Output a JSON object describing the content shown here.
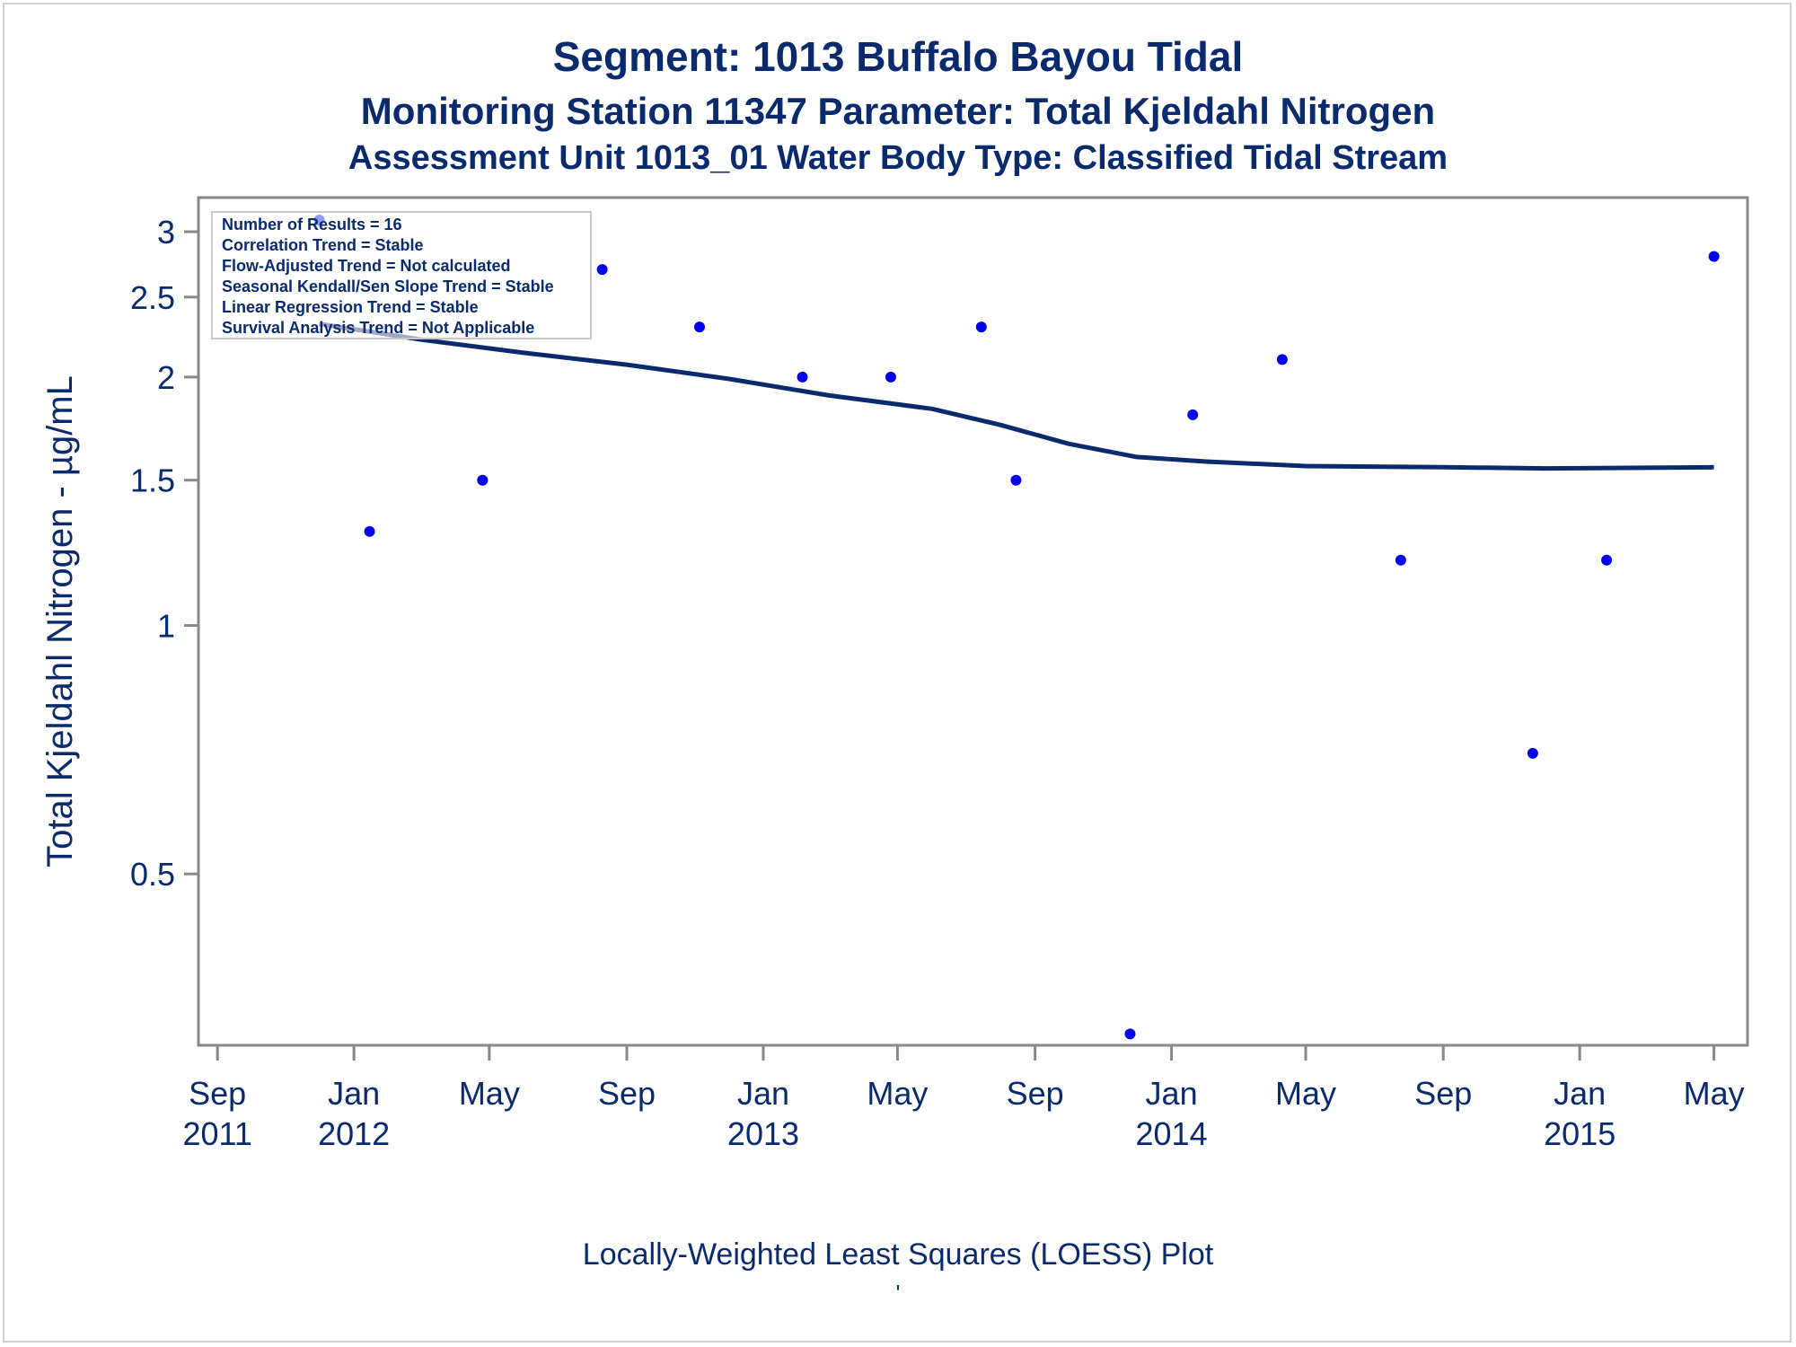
{
  "titles": {
    "line1": "Segment: 1013  Buffalo Bayou Tidal",
    "line2": "Monitoring Station 11347 Parameter: Total Kjeldahl Nitrogen",
    "line3": "Assessment Unit 1013_01   Water Body Type: Classified Tidal Stream"
  },
  "footnote": "Locally-Weighted Least Squares (LOESS) Plot",
  "footmark": "'",
  "colors": {
    "points": "#0000ee",
    "loess": "#0a2a6e",
    "text": "#0a2a6e",
    "frame": "#888888"
  },
  "chart_data": {
    "type": "scatter",
    "ylabel": "Total Kjeldahl Nitrogen -  µg/mL",
    "xlabel": "",
    "y_scale": "log",
    "xlim": [
      "2011-08-15",
      "2015-05-31"
    ],
    "ylim": [
      0.31,
      3.3
    ],
    "y_ticks": [
      3,
      2.5,
      2,
      1.5,
      1,
      0.5
    ],
    "y_tick_labels": [
      "3",
      "2.5",
      "2",
      "1.5",
      "1",
      "0.5"
    ],
    "x_ticks": [
      {
        "date": "2011-09-01",
        "line1": "Sep",
        "line2": "2011"
      },
      {
        "date": "2012-01-01",
        "line1": "Jan",
        "line2": "2012"
      },
      {
        "date": "2012-05-01",
        "line1": "May",
        "line2": ""
      },
      {
        "date": "2012-09-01",
        "line1": "Sep",
        "line2": ""
      },
      {
        "date": "2013-01-01",
        "line1": "Jan",
        "line2": "2013"
      },
      {
        "date": "2013-05-01",
        "line1": "May",
        "line2": ""
      },
      {
        "date": "2013-09-01",
        "line1": "Sep",
        "line2": ""
      },
      {
        "date": "2014-01-01",
        "line1": "Jan",
        "line2": "2014"
      },
      {
        "date": "2014-05-01",
        "line1": "May",
        "line2": ""
      },
      {
        "date": "2014-09-01",
        "line1": "Sep",
        "line2": ""
      },
      {
        "date": "2015-01-01",
        "line1": "Jan",
        "line2": "2015"
      },
      {
        "date": "2015-05-01",
        "line1": "May",
        "line2": ""
      }
    ],
    "points": [
      {
        "x": "2011-12-01",
        "y": 3.1
      },
      {
        "x": "2012-01-15",
        "y": 1.3
      },
      {
        "x": "2012-04-25",
        "y": 1.5
      },
      {
        "x": "2012-08-10",
        "y": 2.7
      },
      {
        "x": "2012-11-05",
        "y": 2.3
      },
      {
        "x": "2013-02-05",
        "y": 2.0
      },
      {
        "x": "2013-04-25",
        "y": 2.0
      },
      {
        "x": "2013-07-15",
        "y": 2.3
      },
      {
        "x": "2013-08-15",
        "y": 1.5
      },
      {
        "x": "2013-11-25",
        "y": 0.32
      },
      {
        "x": "2014-01-20",
        "y": 1.8
      },
      {
        "x": "2014-04-10",
        "y": 2.1
      },
      {
        "x": "2014-07-25",
        "y": 1.2
      },
      {
        "x": "2014-11-20",
        "y": 0.7
      },
      {
        "x": "2015-01-25",
        "y": 1.2
      },
      {
        "x": "2015-05-01",
        "y": 2.8
      }
    ],
    "loess": [
      {
        "x": "2011-12-01",
        "y": 2.32
      },
      {
        "x": "2012-03-01",
        "y": 2.22
      },
      {
        "x": "2012-06-01",
        "y": 2.14
      },
      {
        "x": "2012-09-01",
        "y": 2.07
      },
      {
        "x": "2012-12-01",
        "y": 1.99
      },
      {
        "x": "2013-03-01",
        "y": 1.9
      },
      {
        "x": "2013-06-01",
        "y": 1.83
      },
      {
        "x": "2013-08-01",
        "y": 1.75
      },
      {
        "x": "2013-10-01",
        "y": 1.66
      },
      {
        "x": "2013-12-01",
        "y": 1.6
      },
      {
        "x": "2014-02-01",
        "y": 1.58
      },
      {
        "x": "2014-05-01",
        "y": 1.56
      },
      {
        "x": "2014-09-01",
        "y": 1.555
      },
      {
        "x": "2014-12-01",
        "y": 1.55
      },
      {
        "x": "2015-05-01",
        "y": 1.555
      }
    ],
    "legend": {
      "position": "top-left",
      "lines": [
        "Number of Results = 16",
        "Correlation Trend = Stable",
        "Flow-Adjusted Trend = Not calculated",
        "Seasonal Kendall/Sen Slope Trend = Stable",
        "Linear Regression Trend = Stable",
        "Survival Analysis Trend = Not Applicable"
      ]
    }
  }
}
